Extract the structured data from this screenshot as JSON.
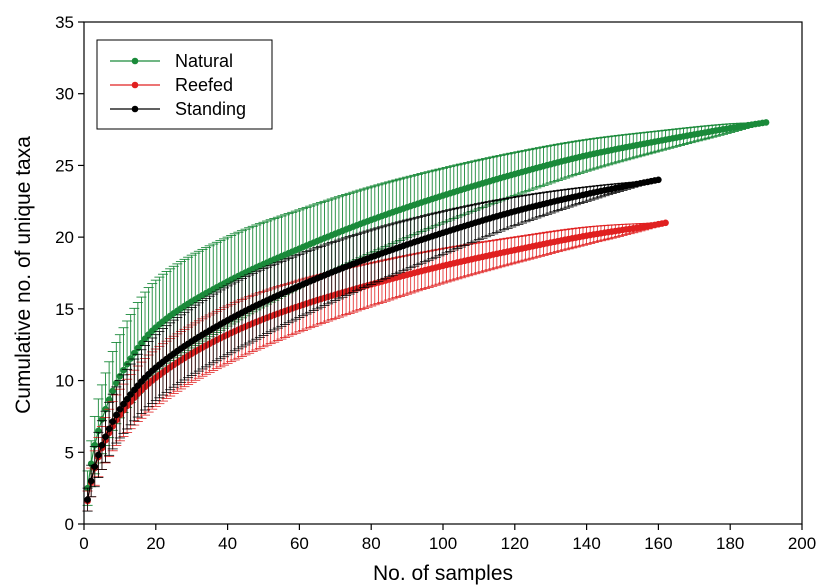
{
  "chart_data": {
    "type": "line",
    "title": "",
    "xlabel": "No. of samples",
    "ylabel": "Cumulative no. of unique taxa",
    "xlim": [
      0,
      200
    ],
    "ylim": [
      0,
      35
    ],
    "x_ticks": [
      "0",
      "20",
      "40",
      "60",
      "80",
      "100",
      "120",
      "140",
      "160",
      "180",
      "200"
    ],
    "y_ticks": [
      "0",
      "5",
      "10",
      "15",
      "20",
      "25",
      "30",
      "35"
    ],
    "grid": false,
    "legend_position": "top-left",
    "series": [
      {
        "name": "Natural",
        "color": "#1a8a3a",
        "x": [
          1,
          2,
          3,
          5,
          10,
          20,
          40,
          60,
          80,
          100,
          120,
          140,
          160,
          180,
          190
        ],
        "y": [
          2.5,
          4.2,
          5.5,
          7.3,
          10.3,
          13.7,
          16.9,
          19.2,
          21.2,
          22.9,
          24.4,
          25.7,
          26.7,
          27.6,
          28.0
        ],
        "error": [
          1.2,
          1.6,
          2.0,
          2.4,
          2.9,
          3.3,
          3.1,
          2.7,
          2.3,
          1.9,
          1.5,
          1.1,
          0.7,
          0.3,
          0.0
        ]
      },
      {
        "name": "Reefed",
        "color": "#e02020",
        "x": [
          1,
          2,
          3,
          5,
          10,
          20,
          40,
          60,
          80,
          100,
          120,
          140,
          160,
          162
        ],
        "y": [
          1.6,
          2.9,
          3.9,
          5.3,
          7.6,
          10.2,
          13.2,
          15.2,
          16.7,
          18.0,
          19.1,
          20.1,
          20.9,
          21.0
        ],
        "error": [
          0.7,
          1.0,
          1.2,
          1.5,
          1.8,
          2.0,
          2.0,
          1.8,
          1.5,
          1.2,
          0.9,
          0.6,
          0.1,
          0.0
        ]
      },
      {
        "name": "Standing",
        "color": "#000000",
        "x": [
          1,
          2,
          3,
          5,
          10,
          20,
          40,
          60,
          80,
          100,
          120,
          140,
          160
        ],
        "y": [
          1.7,
          3.0,
          4.0,
          5.5,
          8.0,
          10.9,
          14.2,
          16.6,
          18.6,
          20.3,
          21.8,
          23.0,
          24.0
        ],
        "error": [
          0.8,
          1.1,
          1.4,
          1.7,
          2.0,
          2.3,
          2.4,
          2.2,
          1.9,
          1.5,
          1.0,
          0.5,
          0.0
        ]
      }
    ]
  }
}
